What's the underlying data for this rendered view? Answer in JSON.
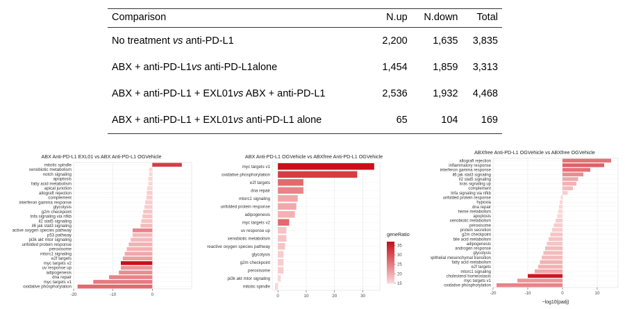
{
  "table": {
    "headers": [
      "Comparison",
      "N.up",
      "N.down",
      "Total"
    ],
    "rows": [
      {
        "pre": "No treatment ",
        "vs": "vs",
        "post": " anti-PD-L1",
        "up": "2,200",
        "down": "1,635",
        "total": "3,835"
      },
      {
        "pre": "ABX + anti-PD-L1",
        "vs": "vs",
        "post": " anti-PD-L1alone",
        "up": "1,454",
        "down": "1,859",
        "total": "3,313"
      },
      {
        "pre": "ABX + anti-PD-L1 + EXL01",
        "vs": "vs",
        "post": " ABX + anti-PD-L1",
        "up": "2,536",
        "down": "1,932",
        "total": "4,468"
      },
      {
        "pre": "ABX + anti-PD-L1 + EXL01",
        "vs": "vs",
        "post": " anti-PD-L1 alone",
        "up": "65",
        "down": "104",
        "total": "169"
      }
    ]
  },
  "colors": {
    "low": "#fcd5d5",
    "high": "#c8101a"
  },
  "chart_data": [
    {
      "type": "bar",
      "orientation": "horizontal",
      "title": "ABX Anti-PD-L1 EXL01 vs ABX Anti-PD-L1 OGVehicle",
      "xlim": [
        -20,
        10
      ],
      "xticks": [
        "-20",
        "-10",
        "0"
      ],
      "xtick_values": [
        -20,
        -10,
        0
      ],
      "categories": [
        "mitotic spindle",
        "xenobiotic metabolism",
        "notch signaling",
        "apoptosis",
        "fatty acid metabolism",
        "apical junction",
        "allograft rejection",
        "complement",
        "interferon gamma response",
        "glycolysis",
        "g2m checkpoint",
        "tnfa signaling via nfkb",
        "il2 stat5 signaling",
        "il6 jak stat3 signaling",
        "reactive oxygen species pathway",
        "p53 pathway",
        "pi3k akt mtor signaling",
        "unfolded protein response",
        "peroxisome",
        "mtorc1 signaling",
        "e2f targets",
        "myc targets v2",
        "uv response up",
        "adipogenesis",
        "dna repair",
        "myc targets v1",
        "oxidative phosphorylation"
      ],
      "values": [
        7.5,
        -0.8,
        -0.8,
        -1,
        -1,
        -1.3,
        -1.4,
        -1.5,
        -1.8,
        -2,
        -2.3,
        -2.5,
        -2.8,
        -3,
        -5,
        -5,
        -5.5,
        -6,
        -6.5,
        -7,
        -7.5,
        -8,
        -8,
        -8.5,
        -11,
        -15,
        -19
      ],
      "gene_ratio": [
        32,
        15,
        15,
        15,
        15,
        15,
        16,
        16,
        16,
        16,
        17,
        17,
        17,
        18,
        24,
        18,
        18,
        19,
        19,
        20,
        21,
        37,
        22,
        23,
        24,
        25,
        27
      ]
    },
    {
      "type": "bar",
      "orientation": "horizontal",
      "title": "ABX Anti-PD-L1 OGVehicle vs ABXfree Anti-PD-L1 OGVehicle",
      "xlim": [
        -2,
        36
      ],
      "xticks": [
        "0",
        "10",
        "20",
        "30"
      ],
      "xtick_values": [
        0,
        10,
        20,
        30
      ],
      "categories": [
        "myc targets v1",
        "oxidative phosphorylation",
        "e2f targets",
        "dna repair",
        "mtorc1 signaling",
        "unfolded protein response",
        "adipogenesis",
        "myc targets v2",
        "uv response up",
        "xenobiotic metabolism",
        "reactive oxygen species pathway",
        "glycolysis",
        "g2m checkpoint",
        "peroxisome",
        "pi3k akt mtor signaling",
        "mitotic spindle"
      ],
      "values": [
        34,
        28,
        9,
        9,
        7,
        6.5,
        6,
        4,
        3,
        3,
        2.5,
        2,
        2,
        2,
        1,
        -1
      ],
      "gene_ratio": [
        37,
        32,
        27,
        24,
        20,
        20,
        19,
        27,
        17,
        17,
        17,
        16,
        16,
        16,
        15,
        15
      ],
      "legend": {
        "title": "geneRatio",
        "ticks": [
          "35",
          "30",
          "25",
          "20",
          "15"
        ]
      }
    },
    {
      "type": "bar",
      "orientation": "horizontal",
      "title": "ABXfree Anti-PD-L1 OGVehicle vs ABXfree OGVehicle",
      "xlabel": "−log10(padj)",
      "xlim": [
        -20,
        16
      ],
      "xticks": [
        "-20",
        "-10",
        "0",
        "10"
      ],
      "xtick_values": [
        -20,
        -10,
        0,
        10
      ],
      "categories": [
        "allograft rejection",
        "inflammatory response",
        "interferon gamma response",
        "il6 jak stat3 signaling",
        "il2 stat5 signaling",
        "kras signaling up",
        "complement",
        "tnfa signaling via nfkb",
        "unfolded protein response",
        "hypoxia",
        "dna repair",
        "heme metabolism",
        "apoptosis",
        "xenobiotic metabolism",
        "peroxisome",
        "protein secretion",
        "g2m checkpoint",
        "bile acid metabolism",
        "adipogenesis",
        "androgen response",
        "glycolysis",
        "epithelial mesenchymal transition",
        "fatty acid metabolism",
        "e2f targets",
        "mtorc1 signaling",
        "cholesterol homeostasis",
        "myc targets v1",
        "oxidative phosphorylation"
      ],
      "values": [
        14,
        12,
        8,
        6,
        4.5,
        4,
        3,
        1.5,
        -0.5,
        -0.8,
        -1,
        -1.2,
        -1.5,
        -2,
        -2.5,
        -3,
        -3.5,
        -4,
        -4.5,
        -5,
        -5.5,
        -6,
        -6.5,
        -7,
        -8,
        -10,
        -13,
        -19
      ],
      "gene_ratio": [
        26,
        28,
        26,
        23,
        20,
        19,
        18,
        16,
        15,
        15,
        15,
        15,
        15,
        16,
        16,
        16,
        17,
        17,
        17,
        18,
        18,
        18,
        19,
        19,
        20,
        36,
        22,
        24
      ]
    }
  ]
}
